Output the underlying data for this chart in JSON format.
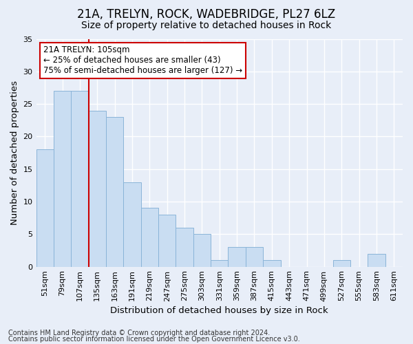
{
  "title": "21A, TRELYN, ROCK, WADEBRIDGE, PL27 6LZ",
  "subtitle": "Size of property relative to detached houses in Rock",
  "xlabel": "Distribution of detached houses by size in Rock",
  "ylabel": "Number of detached properties",
  "footnote1": "Contains HM Land Registry data © Crown copyright and database right 2024.",
  "footnote2": "Contains public sector information licensed under the Open Government Licence v3.0.",
  "categories": [
    "51sqm",
    "79sqm",
    "107sqm",
    "135sqm",
    "163sqm",
    "191sqm",
    "219sqm",
    "247sqm",
    "275sqm",
    "303sqm",
    "331sqm",
    "359sqm",
    "387sqm",
    "415sqm",
    "443sqm",
    "471sqm",
    "499sqm",
    "527sqm",
    "555sqm",
    "583sqm",
    "611sqm"
  ],
  "values": [
    18,
    27,
    27,
    24,
    23,
    13,
    9,
    8,
    6,
    5,
    1,
    3,
    3,
    1,
    0,
    0,
    0,
    1,
    0,
    2,
    0
  ],
  "bar_color": "#c9ddf2",
  "bar_edge_color": "#8ab4d8",
  "red_line_color": "#cc0000",
  "annotation_line1": "21A TRELYN: 105sqm",
  "annotation_line2": "← 25% of detached houses are smaller (43)",
  "annotation_line3": "75% of semi-detached houses are larger (127) →",
  "annotation_box_color": "#ffffff",
  "annotation_box_edge_color": "#cc0000",
  "ylim": [
    0,
    35
  ],
  "yticks": [
    0,
    5,
    10,
    15,
    20,
    25,
    30,
    35
  ],
  "background_color": "#e8eef8",
  "grid_color": "#ffffff",
  "title_fontsize": 12,
  "subtitle_fontsize": 10,
  "axis_label_fontsize": 9.5,
  "tick_fontsize": 8,
  "footnote_fontsize": 7,
  "annotation_fontsize": 8.5
}
